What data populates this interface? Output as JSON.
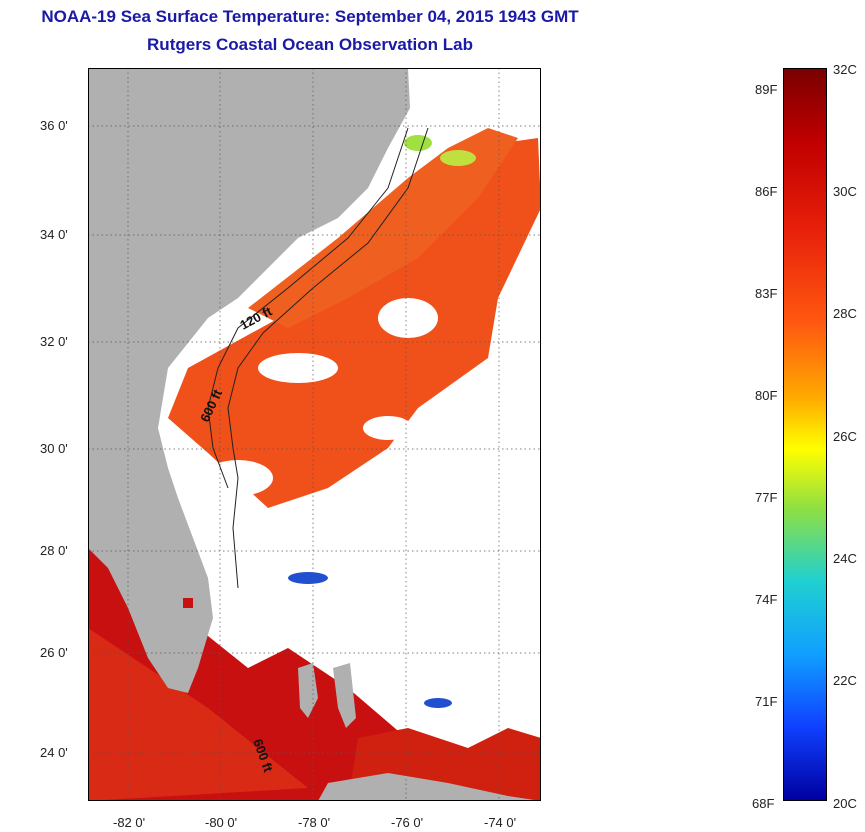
{
  "title": {
    "line1": "NOAA-19 Sea Surface Temperature:  September 04, 2015 1943 GMT",
    "line2": "Rutgers Coastal Ocean Observation Lab"
  },
  "map": {
    "lat_ticks": [
      "36 0'",
      "34 0'",
      "32 0'",
      "30 0'",
      "28 0'",
      "26 0'",
      "24 0'"
    ],
    "lon_ticks": [
      "-82 0'",
      "-80 0'",
      "-78 0'",
      "-76 0'",
      "-74 0'"
    ],
    "contour_labels": [
      "120 ft",
      "600 ft",
      "600 ft"
    ]
  },
  "colorbar": {
    "fahrenheit_labels": [
      "89F",
      "86F",
      "83F",
      "80F",
      "77F",
      "74F",
      "71F",
      "68F"
    ],
    "celsius_labels": [
      "32C",
      "30C",
      "28C",
      "26C",
      "24C",
      "22C",
      "20C"
    ]
  },
  "colors": {
    "land": "#b0b0b0",
    "ocean_warm": "#f0501a",
    "ocean_hot": "#c81010",
    "cloud": "#ffffff",
    "title": "#1a1aa6"
  }
}
